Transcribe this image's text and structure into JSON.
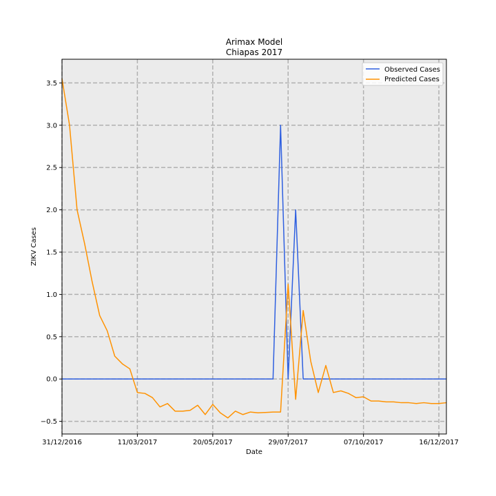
{
  "chart_data": {
    "type": "line",
    "title": "Arimax Model",
    "subtitle": "Chiapas 2017",
    "xlabel": "Date",
    "ylabel": "ZIKV Cases",
    "ylim": [
      -0.65,
      3.78
    ],
    "y_ticks": [
      -0.5,
      0.0,
      0.5,
      1.0,
      1.5,
      2.0,
      2.5,
      3.0,
      3.5
    ],
    "y_tick_labels": [
      "−0.5",
      "0.0",
      "0.5",
      "1.0",
      "1.5",
      "2.0",
      "2.5",
      "3.0",
      "3.5"
    ],
    "x_tick_labels": [
      "31/12/2016",
      "11/03/2017",
      "20/05/2017",
      "29/07/2017",
      "07/10/2017",
      "16/12/2017"
    ],
    "x_tick_dates": [
      "2016-12-31",
      "2017-03-11",
      "2017-05-20",
      "2017-07-29",
      "2017-10-07",
      "2017-12-16"
    ],
    "xlim": [
      "2016-12-31",
      "2017-12-23"
    ],
    "grid": true,
    "legend_position": "top-right",
    "series": [
      {
        "name": "Observed Cases",
        "color": "#2e5fe0",
        "points": [
          [
            "2016-12-31",
            0
          ],
          [
            "2017-07-15",
            0
          ],
          [
            "2017-07-22",
            3
          ],
          [
            "2017-07-29",
            0
          ],
          [
            "2017-08-05",
            2
          ],
          [
            "2017-08-12",
            0
          ],
          [
            "2017-12-23",
            0
          ]
        ]
      },
      {
        "name": "Predicted Cases",
        "color": "#ff9200",
        "points": [
          [
            "2016-12-31",
            3.55
          ],
          [
            "2017-01-07",
            3.0
          ],
          [
            "2017-01-14",
            2.0
          ],
          [
            "2017-01-21",
            1.6
          ],
          [
            "2017-01-28",
            1.15
          ],
          [
            "2017-02-04",
            0.75
          ],
          [
            "2017-02-11",
            0.57
          ],
          [
            "2017-02-18",
            0.27
          ],
          [
            "2017-02-25",
            0.18
          ],
          [
            "2017-03-04",
            0.12
          ],
          [
            "2017-03-11",
            -0.16
          ],
          [
            "2017-03-18",
            -0.17
          ],
          [
            "2017-03-25",
            -0.22
          ],
          [
            "2017-04-01",
            -0.33
          ],
          [
            "2017-04-08",
            -0.29
          ],
          [
            "2017-04-15",
            -0.38
          ],
          [
            "2017-04-22",
            -0.38
          ],
          [
            "2017-04-29",
            -0.37
          ],
          [
            "2017-05-06",
            -0.31
          ],
          [
            "2017-05-13",
            -0.42
          ],
          [
            "2017-05-20",
            -0.3
          ],
          [
            "2017-05-27",
            -0.4
          ],
          [
            "2017-06-03",
            -0.46
          ],
          [
            "2017-06-10",
            -0.38
          ],
          [
            "2017-06-17",
            -0.42
          ],
          [
            "2017-06-24",
            -0.39
          ],
          [
            "2017-07-01",
            -0.4
          ],
          [
            "2017-07-08",
            -0.395
          ],
          [
            "2017-07-15",
            -0.39
          ],
          [
            "2017-07-22",
            -0.39
          ],
          [
            "2017-07-29",
            1.12
          ],
          [
            "2017-08-05",
            -0.24
          ],
          [
            "2017-08-12",
            0.81
          ],
          [
            "2017-08-19",
            0.21
          ],
          [
            "2017-08-26",
            -0.16
          ],
          [
            "2017-09-02",
            0.16
          ],
          [
            "2017-09-09",
            -0.16
          ],
          [
            "2017-09-16",
            -0.14
          ],
          [
            "2017-09-23",
            -0.17
          ],
          [
            "2017-09-30",
            -0.22
          ],
          [
            "2017-10-07",
            -0.21
          ],
          [
            "2017-10-14",
            -0.26
          ],
          [
            "2017-10-21",
            -0.26
          ],
          [
            "2017-10-28",
            -0.27
          ],
          [
            "2017-11-04",
            -0.27
          ],
          [
            "2017-11-11",
            -0.28
          ],
          [
            "2017-11-18",
            -0.28
          ],
          [
            "2017-11-25",
            -0.29
          ],
          [
            "2017-12-02",
            -0.28
          ],
          [
            "2017-12-09",
            -0.29
          ],
          [
            "2017-12-16",
            -0.29
          ],
          [
            "2017-12-23",
            -0.28
          ]
        ]
      }
    ]
  }
}
